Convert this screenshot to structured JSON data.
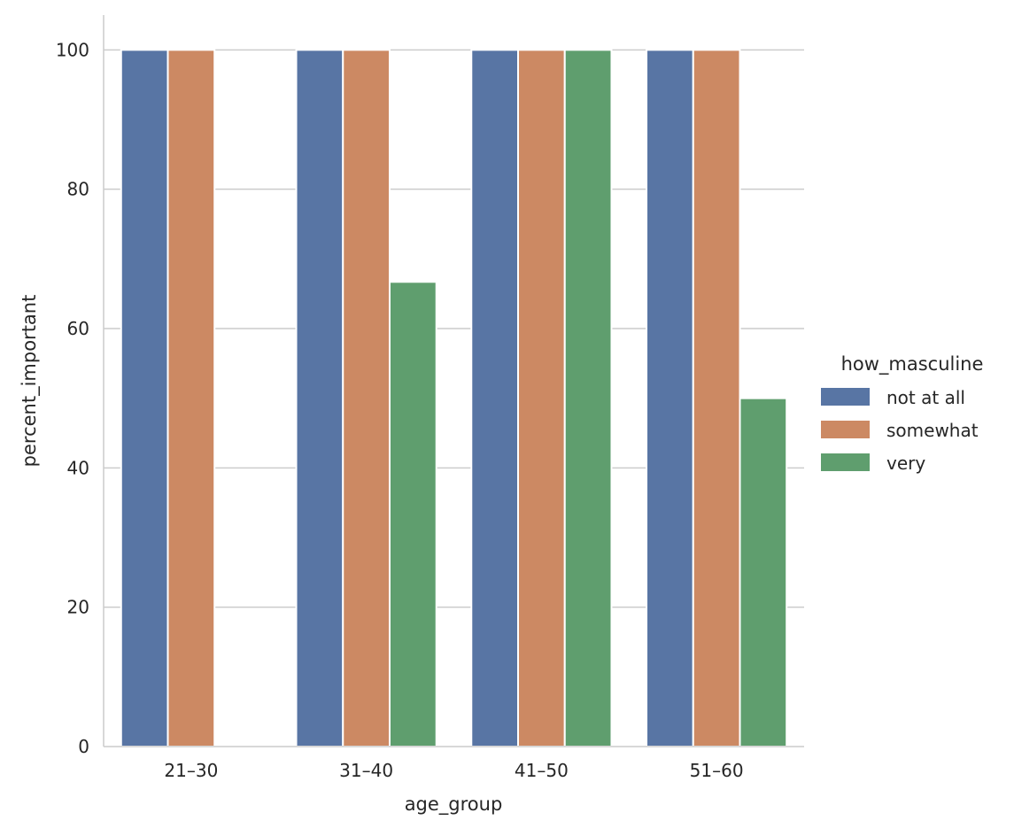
{
  "chart_data": {
    "type": "bar",
    "categories": [
      "21–30",
      "31–40",
      "41–50",
      "51–60"
    ],
    "series": [
      {
        "name": "not at all",
        "values": [
          100,
          100,
          100,
          100
        ],
        "color": "#5875a4"
      },
      {
        "name": "somewhat",
        "values": [
          100,
          100,
          100,
          100
        ],
        "color": "#cc8963"
      },
      {
        "name": "very",
        "values": [
          0,
          66.7,
          100,
          50
        ],
        "color": "#5f9e6e"
      }
    ],
    "xlabel": "age_group",
    "ylabel": "percent_important",
    "ylim": [
      0,
      105
    ],
    "yticks": [
      0,
      20,
      40,
      60,
      80,
      100
    ],
    "grid": true,
    "legend": {
      "title": "how_masculine",
      "placement": "right"
    }
  }
}
